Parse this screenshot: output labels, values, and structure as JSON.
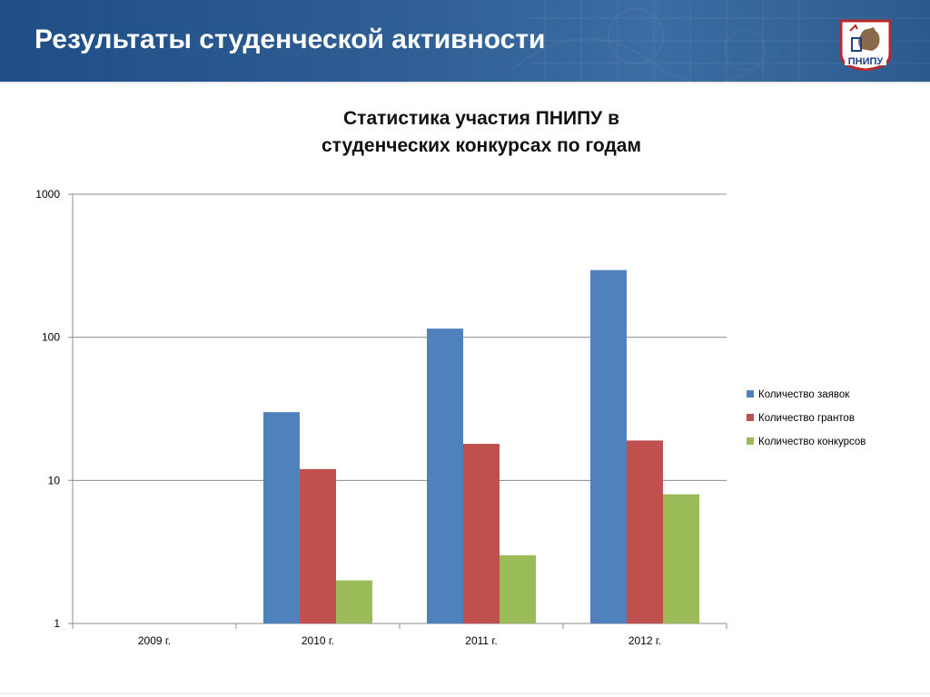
{
  "slide": {
    "title": "Результаты студенческой активности",
    "logo_text": "ПНИПУ"
  },
  "colors": {
    "header": "#2a5a8f",
    "series": [
      "#4f81bd",
      "#c0504d",
      "#9bbb59"
    ]
  },
  "chart_data": {
    "type": "bar",
    "title_line1": "Статистика участия ПНИПУ в",
    "title_line2": "студенческих конкурсах по годам",
    "categories": [
      "2009 г.",
      "2010 г.",
      "2011 г.",
      "2012 г."
    ],
    "series": [
      {
        "name": "Количество заявок",
        "values": [
          null,
          30,
          115,
          295
        ]
      },
      {
        "name": "Количество грантов",
        "values": [
          null,
          12,
          18,
          19
        ]
      },
      {
        "name": "Количество конкурсов",
        "values": [
          null,
          2,
          3,
          8
        ]
      }
    ],
    "y_scale": "log",
    "ylim": [
      1,
      1000
    ],
    "yticks": [
      1,
      10,
      100,
      1000
    ],
    "ytick_labels": [
      "1",
      "10",
      "100",
      "1000"
    ],
    "grid": true,
    "legend_position": "right"
  }
}
